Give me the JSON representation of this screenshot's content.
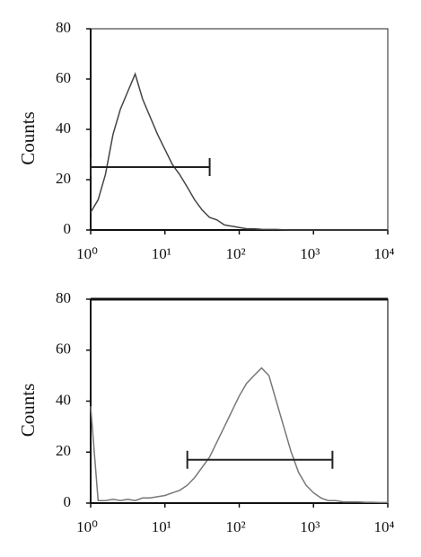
{
  "chart_data": [
    {
      "type": "line",
      "ylabel": "Counts",
      "xscale": "log",
      "color": "#444444",
      "xlim": [
        1,
        10000
      ],
      "ylim": [
        0,
        80
      ],
      "yticks": [
        0,
        20,
        40,
        60,
        80
      ],
      "xticks": [
        {
          "value": 1,
          "label": "10⁰"
        },
        {
          "value": 10,
          "label": "10¹"
        },
        {
          "value": 100,
          "label": "10²"
        },
        {
          "value": 1000,
          "label": "10³"
        },
        {
          "value": 10000,
          "label": "10⁴"
        }
      ],
      "x": [
        1,
        1.26,
        1.58,
        2,
        2.51,
        3.16,
        3.98,
        5.01,
        6.31,
        7.94,
        10,
        12.6,
        15.8,
        20,
        25.1,
        31.6,
        39.8,
        50.1,
        63.1,
        79.4,
        100,
        126,
        158,
        200,
        251,
        316,
        398,
        501,
        631,
        794,
        1000,
        1260,
        1580,
        2000,
        2510,
        3160,
        3980,
        5010,
        6310,
        7940,
        10000
      ],
      "values": [
        7,
        12,
        22,
        38,
        48,
        55,
        62,
        52,
        45,
        38,
        32,
        26,
        22,
        17,
        12,
        8,
        5,
        4,
        2,
        1.5,
        1,
        0.5,
        0.5,
        0.3,
        0.2,
        0.2,
        0.1,
        0,
        0,
        0,
        0,
        0,
        0,
        0,
        0,
        0,
        0,
        0,
        0,
        0,
        0
      ],
      "gate": {
        "x": [
          1,
          40
        ],
        "y": 25
      }
    },
    {
      "type": "line",
      "ylabel": "Counts",
      "xscale": "log",
      "color": "#777777",
      "xlim": [
        1,
        10000
      ],
      "ylim": [
        0,
        80
      ],
      "yticks": [
        0,
        20,
        40,
        60,
        80
      ],
      "xticks": [
        {
          "value": 1,
          "label": "10⁰"
        },
        {
          "value": 10,
          "label": "10¹"
        },
        {
          "value": 100,
          "label": "10²"
        },
        {
          "value": 1000,
          "label": "10³"
        },
        {
          "value": 10000,
          "label": "10⁴"
        }
      ],
      "x": [
        1,
        1.26,
        1.58,
        2,
        2.51,
        3.16,
        3.98,
        5.01,
        6.31,
        7.94,
        10,
        12.6,
        15.8,
        20,
        25.1,
        31.6,
        39.8,
        50.1,
        63.1,
        79.4,
        100,
        126,
        158,
        200,
        251,
        316,
        398,
        501,
        631,
        794,
        1000,
        1260,
        1580,
        2000,
        2510,
        3160,
        3980,
        5010,
        6310,
        7940,
        10000
      ],
      "values": [
        38,
        1,
        1,
        1.5,
        1,
        1.5,
        1,
        2,
        2,
        2.5,
        3,
        4,
        5,
        7,
        10,
        14,
        18,
        24,
        30,
        36,
        42,
        47,
        50,
        53,
        50,
        40,
        30,
        20,
        12,
        7,
        4,
        2,
        1,
        1,
        0.5,
        0.5,
        0.5,
        0.3,
        0.3,
        0.2,
        0.2
      ],
      "gate": {
        "x": [
          20,
          1800
        ],
        "y": 17
      }
    }
  ]
}
